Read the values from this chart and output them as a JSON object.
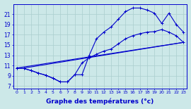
{
  "background_color": "#cce8e8",
  "grid_color": "#aacece",
  "line_color": "#0000cc",
  "xlabel": "Graphe des températures (°c)",
  "xlim": [
    -0.5,
    23.5
  ],
  "ylim": [
    6.5,
    23.0
  ],
  "yticks": [
    7,
    9,
    11,
    13,
    15,
    17,
    19,
    21
  ],
  "xticks": [
    0,
    1,
    2,
    3,
    4,
    5,
    6,
    7,
    8,
    9,
    10,
    11,
    12,
    13,
    14,
    15,
    16,
    17,
    18,
    19,
    20,
    21,
    22,
    23
  ],
  "line_straight1": {
    "x": [
      0,
      23
    ],
    "y": [
      10.5,
      15.5
    ]
  },
  "line_straight2": {
    "x": [
      1,
      23
    ],
    "y": [
      10.5,
      15.5
    ]
  },
  "line_hourly": {
    "x": [
      0,
      1,
      2,
      3,
      4,
      5,
      6,
      7,
      8,
      9,
      10,
      11,
      12,
      13,
      14,
      15,
      16,
      17,
      18,
      19,
      20,
      21,
      22,
      23
    ],
    "y": [
      10.5,
      10.4,
      10.0,
      9.5,
      9.1,
      8.5,
      7.8,
      7.8,
      9.2,
      11.5,
      12.5,
      13.2,
      13.8,
      14.2,
      15.2,
      16.2,
      16.8,
      17.2,
      17.5,
      17.6,
      18.0,
      17.5,
      16.8,
      15.5
    ]
  },
  "line_upper": {
    "x": [
      0,
      1,
      2,
      3,
      4,
      5,
      6,
      7,
      8,
      9,
      10,
      11,
      12,
      13,
      14,
      15,
      16,
      17,
      18,
      19,
      20,
      21,
      22,
      23
    ],
    "y": [
      10.5,
      10.4,
      10.0,
      9.5,
      9.1,
      8.5,
      7.8,
      7.8,
      9.2,
      9.2,
      13.0,
      16.2,
      17.5,
      18.5,
      20.0,
      21.5,
      22.2,
      22.2,
      21.8,
      21.2,
      19.2,
      21.2,
      19.0,
      17.5
    ]
  }
}
